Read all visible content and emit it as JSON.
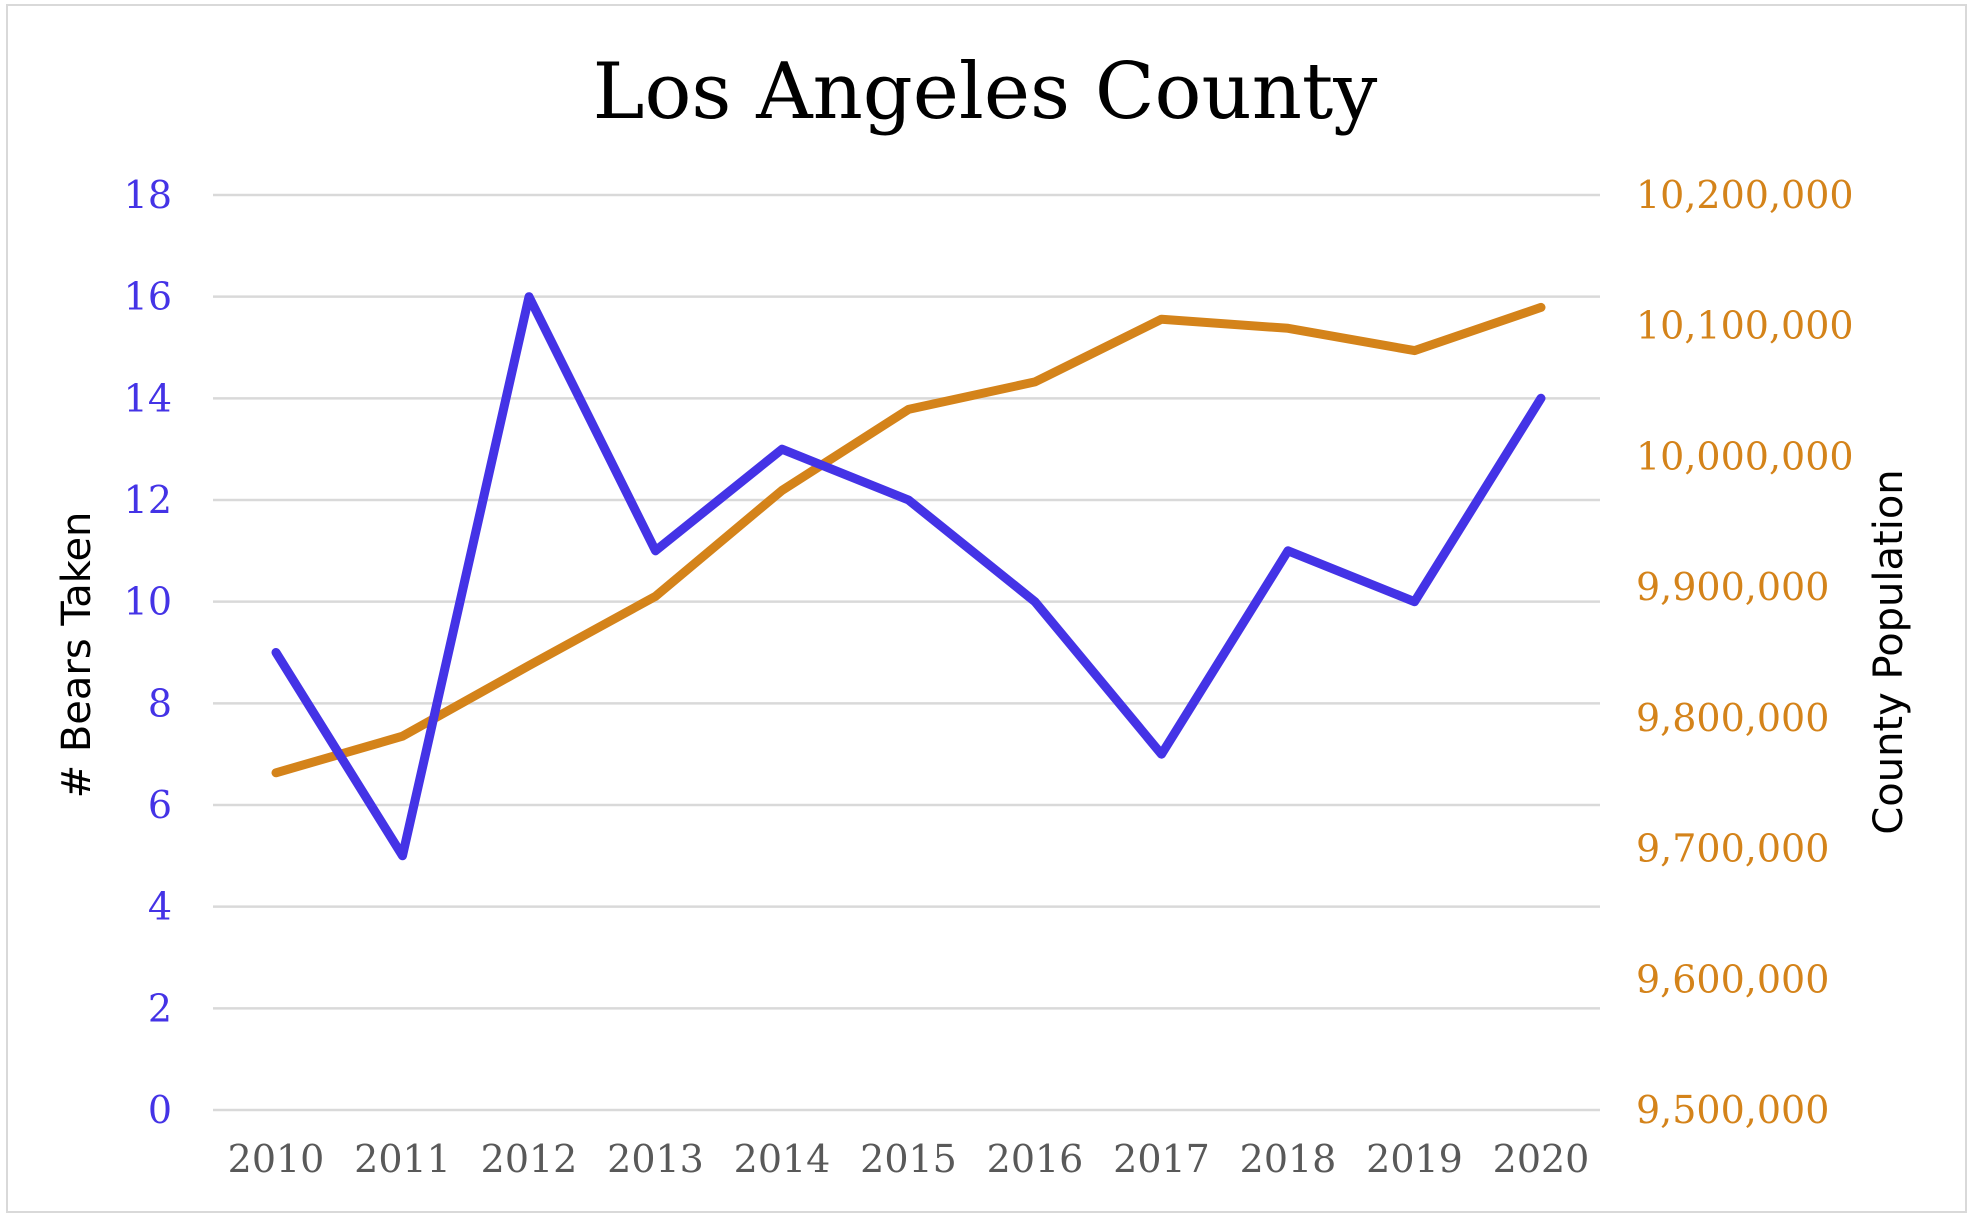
{
  "chart_data": {
    "type": "line",
    "title": "Los Angeles County",
    "x": [
      "2010",
      "2011",
      "2012",
      "2013",
      "2014",
      "2015",
      "2016",
      "2017",
      "2018",
      "2019",
      "2020"
    ],
    "y_left": {
      "label": "# Bears Taken",
      "ylim": [
        0,
        18
      ],
      "ticks": [
        0,
        2,
        4,
        6,
        8,
        10,
        12,
        14,
        16,
        18
      ],
      "color": "#4433e6"
    },
    "y_right": {
      "label": "County Population",
      "ylim": [
        9500000,
        10200000
      ],
      "ticks": [
        "9,500,000",
        "9,600,000",
        "9,700,000",
        "9,800,000",
        "9,900,000",
        "10,000,000",
        "10,100,000",
        "10,200,000"
      ],
      "color": "#d4831a"
    },
    "series": [
      {
        "axis": "left",
        "color": "#4433e6",
        "values": [
          9,
          5,
          16,
          11,
          13,
          12,
          10,
          7,
          11,
          10,
          14
        ]
      },
      {
        "axis": "right",
        "color": "#d4831a",
        "values": [
          9758000,
          9786000,
          9840000,
          9893000,
          9974000,
          10036000,
          10057000,
          10105000,
          10098000,
          10081000,
          10114000
        ]
      }
    ],
    "grid": true,
    "legend": "none"
  }
}
